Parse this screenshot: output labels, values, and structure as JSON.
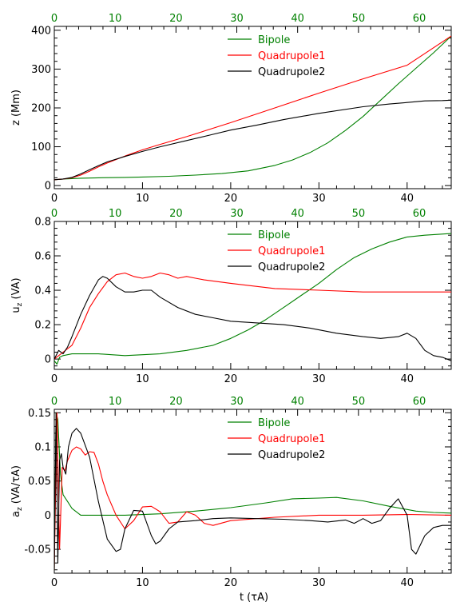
{
  "figure": {
    "xlabel": "t (τA)"
  },
  "chart_data": [
    {
      "type": "line",
      "title": "",
      "ylabel": "z (Mm)",
      "xlabel": "",
      "xlim": [
        0,
        45
      ],
      "ylim": [
        -8,
        410
      ],
      "xticks": [
        0,
        10,
        20,
        30,
        40
      ],
      "yticks": [
        0,
        100,
        200,
        300,
        400
      ],
      "top_axis": {
        "ticks": [
          0,
          10,
          20,
          30,
          40,
          50,
          60
        ],
        "scale": 1.45,
        "color": "#008000"
      },
      "legend_position": "top-center",
      "series": [
        {
          "name": "Bipole",
          "color": "#008000",
          "x": [
            0,
            1,
            2,
            3,
            5,
            8,
            10,
            13,
            16,
            19,
            22,
            25,
            27,
            29,
            31,
            33,
            35,
            37,
            39,
            41,
            43,
            45
          ],
          "y": [
            15,
            17,
            18,
            19,
            20,
            21,
            22,
            24,
            27,
            31,
            38,
            52,
            66,
            85,
            110,
            142,
            178,
            220,
            262,
            302,
            342,
            385
          ]
        },
        {
          "name": "Quadrupole1",
          "color": "#ff0000",
          "x": [
            0,
            1,
            2,
            3,
            4,
            5,
            6,
            8,
            10,
            12,
            15,
            20,
            25,
            30,
            35,
            40,
            45
          ],
          "y": [
            15,
            17,
            20,
            27,
            37,
            48,
            58,
            76,
            92,
            106,
            126,
            162,
            200,
            238,
            275,
            310,
            385
          ]
        },
        {
          "name": "Quadrupole2",
          "color": "#000000",
          "x": [
            0,
            1,
            2,
            3,
            4,
            5,
            6,
            8,
            10,
            12,
            15,
            18,
            20,
            23,
            26,
            30,
            35,
            38,
            40,
            42,
            44,
            45
          ],
          "y": [
            15,
            17,
            21,
            30,
            41,
            51,
            61,
            75,
            88,
            100,
            116,
            132,
            143,
            156,
            170,
            186,
            203,
            210,
            214,
            218,
            219,
            220
          ]
        }
      ]
    },
    {
      "type": "line",
      "title": "",
      "ylabel": "uz (VA)",
      "xlabel": "",
      "xlim": [
        0,
        45
      ],
      "ylim": [
        -0.06,
        0.8
      ],
      "xticks": [
        0,
        10,
        20,
        30,
        40
      ],
      "yticks": [
        0.0,
        0.2,
        0.4,
        0.6,
        0.8
      ],
      "top_axis": {
        "ticks": [
          0,
          10,
          20,
          30,
          40,
          50,
          60
        ],
        "scale": 1.45,
        "color": "#008000"
      },
      "legend_position": "top-center",
      "series": [
        {
          "name": "Bipole",
          "color": "#008000",
          "x": [
            0,
            0.3,
            0.6,
            1,
            2,
            5,
            8,
            12,
            15,
            18,
            20,
            22,
            24,
            26,
            28,
            30,
            32,
            34,
            36,
            38,
            40,
            42,
            45
          ],
          "y": [
            -0.01,
            -0.03,
            0.01,
            0.02,
            0.03,
            0.03,
            0.02,
            0.03,
            0.05,
            0.08,
            0.12,
            0.17,
            0.23,
            0.3,
            0.37,
            0.44,
            0.52,
            0.59,
            0.64,
            0.68,
            0.71,
            0.72,
            0.73
          ]
        },
        {
          "name": "Quadrupole1",
          "color": "#ff0000",
          "x": [
            0,
            0.5,
            1,
            2,
            3,
            4,
            5,
            6,
            7,
            8,
            9,
            10,
            11,
            12,
            13,
            14,
            15,
            16,
            17,
            20,
            25,
            30,
            35,
            40,
            45
          ],
          "y": [
            0,
            0.02,
            0.04,
            0.08,
            0.18,
            0.3,
            0.38,
            0.45,
            0.49,
            0.5,
            0.48,
            0.47,
            0.48,
            0.5,
            0.49,
            0.47,
            0.48,
            0.47,
            0.46,
            0.44,
            0.41,
            0.4,
            0.39,
            0.39,
            0.39
          ]
        },
        {
          "name": "Quadrupole2",
          "color": "#000000",
          "x": [
            0,
            0.5,
            1,
            1.5,
            2,
            3,
            4,
            5,
            5.5,
            6,
            7,
            8,
            9,
            10,
            11,
            12,
            14,
            16,
            18,
            20,
            23,
            26,
            29,
            32,
            35,
            37,
            39,
            40,
            41,
            42,
            43,
            44,
            45
          ],
          "y": [
            0,
            0.05,
            0.03,
            0.07,
            0.13,
            0.26,
            0.37,
            0.46,
            0.48,
            0.47,
            0.42,
            0.39,
            0.39,
            0.4,
            0.4,
            0.36,
            0.3,
            0.26,
            0.24,
            0.22,
            0.21,
            0.2,
            0.18,
            0.15,
            0.13,
            0.12,
            0.13,
            0.15,
            0.12,
            0.05,
            0.02,
            0.01,
            -0.01
          ]
        }
      ]
    },
    {
      "type": "line",
      "title": "",
      "ylabel": "az (VA/τA)",
      "xlabel": "t (τA)",
      "xlim": [
        0,
        45
      ],
      "ylim": [
        -0.085,
        0.155
      ],
      "xticks": [
        0,
        10,
        20,
        30,
        40
      ],
      "yticks": [
        -0.05,
        0.0,
        0.05,
        0.1,
        0.15
      ],
      "top_axis": {
        "ticks": [
          0,
          10,
          20,
          30,
          40,
          50,
          60
        ],
        "scale": 1.45,
        "color": "#008000"
      },
      "legend_position": "top-center",
      "series": [
        {
          "name": "Bipole",
          "color": "#008000",
          "x": [
            0,
            0.2,
            0.4,
            0.7,
            1,
            1.5,
            2,
            3,
            5,
            8,
            12,
            16,
            20,
            24,
            27,
            30,
            32,
            35,
            38,
            41,
            43,
            45
          ],
          "y": [
            -0.08,
            0.15,
            0.14,
            0.06,
            0.03,
            0.02,
            0.01,
            0.0,
            0.0,
            0.0,
            0.002,
            0.006,
            0.011,
            0.018,
            0.024,
            0.025,
            0.026,
            0.021,
            0.013,
            0.006,
            0.004,
            0.003
          ]
        },
        {
          "name": "Quadrupole1",
          "color": "#ff0000",
          "x": [
            0,
            0.3,
            0.6,
            0.9,
            1.2,
            1.5,
            2,
            2.5,
            3,
            3.5,
            4,
            4.5,
            5,
            5.5,
            6,
            7,
            8,
            9,
            10,
            11,
            12,
            13,
            14,
            15,
            16,
            17,
            18,
            20,
            25,
            30,
            35,
            40,
            45
          ],
          "y": [
            -0.08,
            0.15,
            -0.05,
            0.07,
            0.065,
            0.08,
            0.095,
            0.1,
            0.097,
            0.088,
            0.093,
            0.092,
            0.075,
            0.05,
            0.03,
            0.0,
            -0.02,
            -0.008,
            0.012,
            0.013,
            0.005,
            -0.012,
            -0.01,
            0.005,
            0.0,
            -0.012,
            -0.015,
            -0.008,
            -0.003,
            0.0,
            0.0,
            0.001,
            0.0
          ]
        },
        {
          "name": "Quadrupole2",
          "color": "#000000",
          "x": [
            0,
            0.2,
            0.4,
            0.6,
            0.8,
            1,
            1.3,
            1.6,
            2,
            2.5,
            3,
            4,
            5,
            6,
            7,
            7.5,
            8,
            9,
            10,
            11,
            11.5,
            12,
            13,
            14,
            16,
            18,
            20,
            23,
            26,
            29,
            31,
            33,
            34,
            35,
            36,
            37,
            38,
            39,
            40,
            40.5,
            41,
            42,
            43,
            44,
            45
          ],
          "y": [
            -0.08,
            0.15,
            -0.07,
            0.08,
            0.09,
            0.07,
            0.06,
            0.1,
            0.12,
            0.127,
            0.12,
            0.085,
            0.02,
            -0.035,
            -0.053,
            -0.05,
            -0.02,
            0.007,
            0.006,
            -0.03,
            -0.042,
            -0.038,
            -0.02,
            -0.01,
            -0.008,
            -0.005,
            -0.004,
            -0.005,
            -0.006,
            -0.008,
            -0.01,
            -0.007,
            -0.012,
            -0.005,
            -0.012,
            -0.008,
            0.01,
            0.024,
            0.0,
            -0.05,
            -0.057,
            -0.03,
            -0.018,
            -0.015,
            -0.015
          ]
        }
      ]
    }
  ]
}
